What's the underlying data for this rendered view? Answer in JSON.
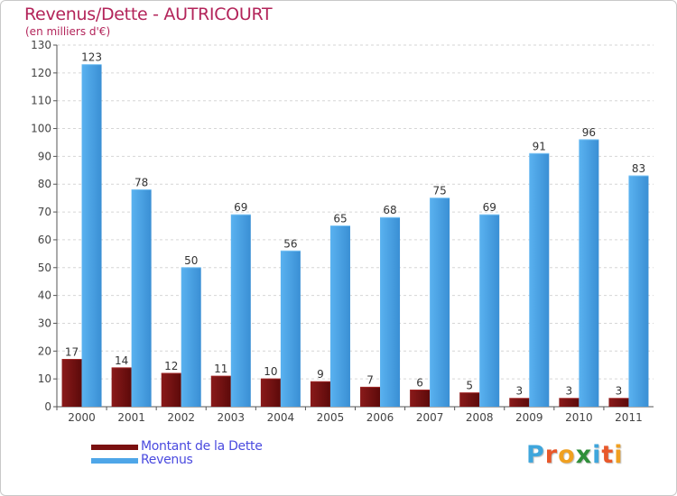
{
  "chart_data": {
    "type": "bar",
    "title": "Revenus/Dette - AUTRICOURT",
    "subtitle": "(en milliers d'€)",
    "categories": [
      "2000",
      "2001",
      "2002",
      "2003",
      "2004",
      "2005",
      "2006",
      "2007",
      "2008",
      "2009",
      "2010",
      "2011"
    ],
    "series": [
      {
        "name": "Montant de la Dette",
        "color": "#7a1010",
        "values": [
          17,
          14,
          12,
          11,
          10,
          9,
          7,
          6,
          5,
          3,
          3,
          3
        ]
      },
      {
        "name": "Revenus",
        "color": "#4ea6e8",
        "values": [
          123,
          78,
          50,
          69,
          56,
          65,
          68,
          75,
          69,
          91,
          96,
          83
        ]
      }
    ],
    "ylim": [
      0,
      130
    ],
    "yticks": [
      0,
      10,
      20,
      30,
      40,
      50,
      60,
      70,
      80,
      90,
      100,
      110,
      120,
      130
    ],
    "grid": true,
    "legend": "bottom-left"
  },
  "logo": {
    "letters": [
      "P",
      "r",
      "o",
      "x",
      "i",
      "t",
      "i"
    ],
    "colors": [
      "#3fa6dc",
      "#e8582a",
      "#f0a020",
      "#2f8f3a",
      "#3fa6dc",
      "#e8582a",
      "#f0a020"
    ]
  }
}
